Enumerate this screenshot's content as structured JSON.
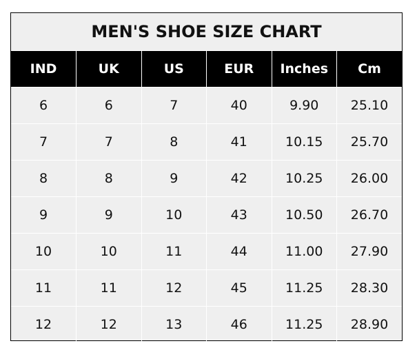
{
  "title": "MEN'S SHOE SIZE CHART",
  "columns": [
    "IND",
    "UK",
    "US",
    "EUR",
    "Inches",
    "Cm"
  ],
  "rows": [
    [
      "6",
      "6",
      "7",
      "40",
      "9.90",
      "25.10"
    ],
    [
      "7",
      "7",
      "8",
      "41",
      "10.15",
      "25.70"
    ],
    [
      "8",
      "8",
      "9",
      "42",
      "10.25",
      "26.00"
    ],
    [
      "9",
      "9",
      "10",
      "43",
      "10.50",
      "26.70"
    ],
    [
      "10",
      "10",
      "11",
      "44",
      "11.00",
      "27.90"
    ],
    [
      "11",
      "11",
      "12",
      "45",
      "11.25",
      "28.30"
    ],
    [
      "12",
      "12",
      "13",
      "46",
      "11.25",
      "28.90"
    ]
  ],
  "colors": {
    "header_bg": "#000000",
    "header_text": "#ffffff",
    "cell_bg": "#efefef",
    "grid": "#ffffff"
  }
}
